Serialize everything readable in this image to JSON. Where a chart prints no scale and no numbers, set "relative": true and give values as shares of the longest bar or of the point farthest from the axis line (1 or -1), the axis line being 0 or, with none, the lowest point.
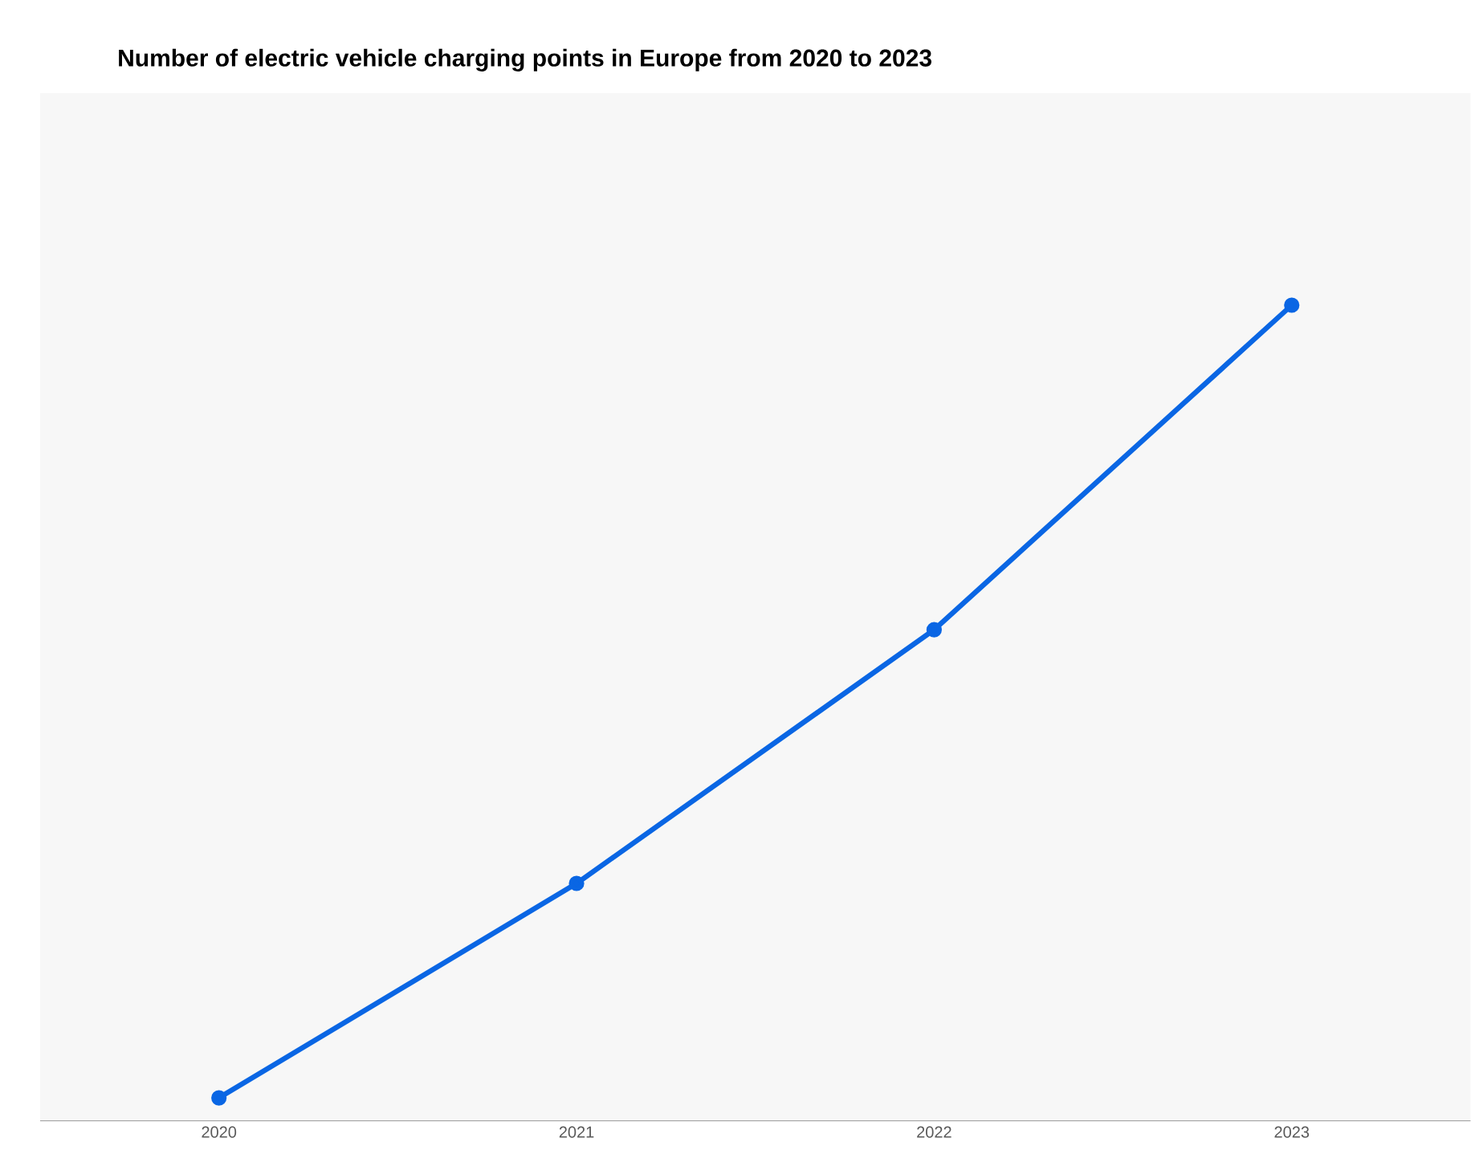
{
  "chart_data": {
    "type": "line",
    "title": "Number of electric vehicle charging points in Europe from 2020 to 2023",
    "categories": [
      "2020",
      "2021",
      "2022",
      "2023"
    ],
    "relative": true,
    "marker": "circle",
    "line_style": "solid",
    "series": [
      {
        "color": "#0a66e4",
        "values": [
          0.028,
          0.291,
          0.602,
          1
        ]
      }
    ]
  }
}
